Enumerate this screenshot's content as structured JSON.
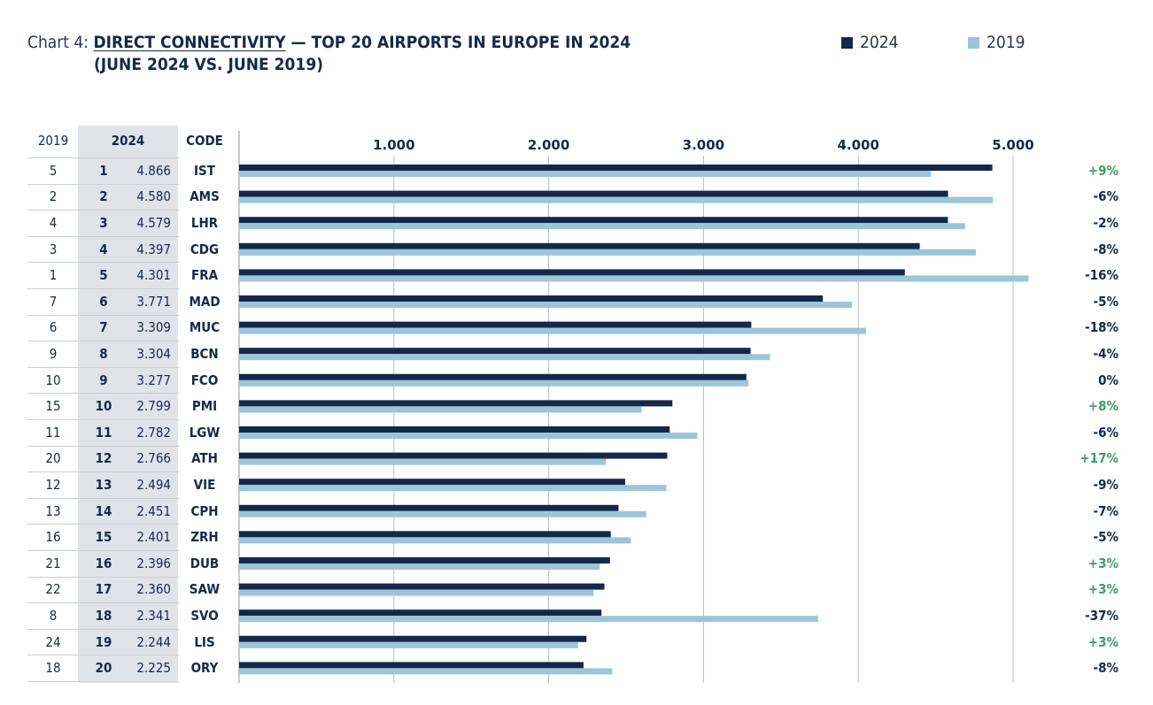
{
  "title": {
    "label": "Chart 4:",
    "main": "DIRECT CONNECTIVITY",
    "rest": " — TOP 20 AIRPORTS IN EUROPE IN 2024",
    "line2": "(JUNE 2024 VS. JUNE 2019)"
  },
  "legend": [
    {
      "name": "2024",
      "color": "#13284a"
    },
    {
      "name": "2019",
      "color": "#9dc5d9"
    }
  ],
  "columns": {
    "rank_2019": "2019",
    "rank_2024": "2024",
    "code": "CODE"
  },
  "colors": {
    "bar_2024": "#13284a",
    "bar_2019": "#9dc5d9",
    "positive": "#3f9f63",
    "negative": "#16294a",
    "gridline": "#b9bec5",
    "table_shade": "#dfe4ea"
  },
  "chart_data": {
    "type": "bar",
    "orientation": "horizontal",
    "grid": true,
    "legend_position": "top-right",
    "xlim": [
      0,
      5000
    ],
    "ticks": [
      {
        "value": 1000,
        "label": "1.000"
      },
      {
        "value": 2000,
        "label": "2.000"
      },
      {
        "value": 3000,
        "label": "3.000"
      },
      {
        "value": 4000,
        "label": "4.000"
      },
      {
        "value": 5000,
        "label": "5.000"
      }
    ],
    "categories": [
      "IST",
      "AMS",
      "LHR",
      "CDG",
      "FRA",
      "MAD",
      "MUC",
      "BCN",
      "FCO",
      "PMI",
      "LGW",
      "ATH",
      "VIE",
      "CPH",
      "ZRH",
      "DUB",
      "SAW",
      "SVO",
      "LIS",
      "ORY"
    ],
    "series": [
      {
        "name": "2024",
        "values": [
          4866,
          4580,
          4579,
          4397,
          4301,
          3771,
          3309,
          3304,
          3277,
          2799,
          2782,
          2766,
          2494,
          2451,
          2401,
          2396,
          2360,
          2341,
          2244,
          2225
        ]
      },
      {
        "name": "2019",
        "values": [
          4470,
          4870,
          4690,
          4760,
          5100,
          3960,
          4050,
          3430,
          3290,
          2600,
          2960,
          2370,
          2760,
          2630,
          2530,
          2330,
          2290,
          3740,
          2190,
          2410
        ]
      }
    ],
    "rows": [
      {
        "rank_2019": "5",
        "rank_2024": "1",
        "value_2024": "4.866",
        "code": "IST",
        "change": "+9%",
        "positive": true
      },
      {
        "rank_2019": "2",
        "rank_2024": "2",
        "value_2024": "4.580",
        "code": "AMS",
        "change": "-6%",
        "positive": false
      },
      {
        "rank_2019": "4",
        "rank_2024": "3",
        "value_2024": "4.579",
        "code": "LHR",
        "change": "-2%",
        "positive": false
      },
      {
        "rank_2019": "3",
        "rank_2024": "4",
        "value_2024": "4.397",
        "code": "CDG",
        "change": "-8%",
        "positive": false
      },
      {
        "rank_2019": "1",
        "rank_2024": "5",
        "value_2024": "4.301",
        "code": "FRA",
        "change": "-16%",
        "positive": false
      },
      {
        "rank_2019": "7",
        "rank_2024": "6",
        "value_2024": "3.771",
        "code": "MAD",
        "change": "-5%",
        "positive": false
      },
      {
        "rank_2019": "6",
        "rank_2024": "7",
        "value_2024": "3.309",
        "code": "MUC",
        "change": "-18%",
        "positive": false
      },
      {
        "rank_2019": "9",
        "rank_2024": "8",
        "value_2024": "3.304",
        "code": "BCN",
        "change": "-4%",
        "positive": false
      },
      {
        "rank_2019": "10",
        "rank_2024": "9",
        "value_2024": "3.277",
        "code": "FCO",
        "change": "0%",
        "positive": false
      },
      {
        "rank_2019": "15",
        "rank_2024": "10",
        "value_2024": "2.799",
        "code": "PMI",
        "change": "+8%",
        "positive": true
      },
      {
        "rank_2019": "11",
        "rank_2024": "11",
        "value_2024": "2.782",
        "code": "LGW",
        "change": "-6%",
        "positive": false
      },
      {
        "rank_2019": "20",
        "rank_2024": "12",
        "value_2024": "2.766",
        "code": "ATH",
        "change": "+17%",
        "positive": true
      },
      {
        "rank_2019": "12",
        "rank_2024": "13",
        "value_2024": "2.494",
        "code": "VIE",
        "change": "-9%",
        "positive": false
      },
      {
        "rank_2019": "13",
        "rank_2024": "14",
        "value_2024": "2.451",
        "code": "CPH",
        "change": "-7%",
        "positive": false
      },
      {
        "rank_2019": "16",
        "rank_2024": "15",
        "value_2024": "2.401",
        "code": "ZRH",
        "change": "-5%",
        "positive": false
      },
      {
        "rank_2019": "21",
        "rank_2024": "16",
        "value_2024": "2.396",
        "code": "DUB",
        "change": "+3%",
        "positive": true
      },
      {
        "rank_2019": "22",
        "rank_2024": "17",
        "value_2024": "2.360",
        "code": "SAW",
        "change": "+3%",
        "positive": true
      },
      {
        "rank_2019": "8",
        "rank_2024": "18",
        "value_2024": "2.341",
        "code": "SVO",
        "change": "-37%",
        "positive": false
      },
      {
        "rank_2019": "24",
        "rank_2024": "19",
        "value_2024": "2.244",
        "code": "LIS",
        "change": "+3%",
        "positive": true
      },
      {
        "rank_2019": "18",
        "rank_2024": "20",
        "value_2024": "2.225",
        "code": "ORY",
        "change": "-8%",
        "positive": false
      }
    ]
  }
}
